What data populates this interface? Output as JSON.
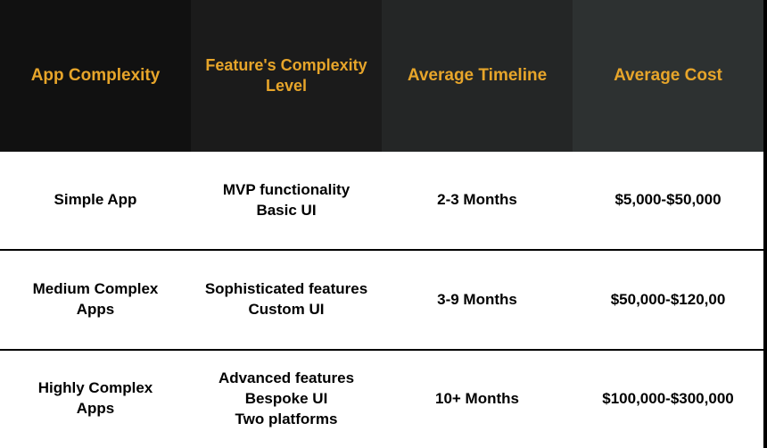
{
  "table": {
    "type": "table",
    "header_bg_colors": [
      "#111111",
      "#1b1b1b",
      "#242626",
      "#2d3131"
    ],
    "header_text_color": "#e7a52a",
    "header_fontsize": 19,
    "body_bg_color": "#ffffff",
    "body_text_color": "#000000",
    "body_fontsize": 17,
    "row_divider_color": "#000000",
    "columns": [
      {
        "key": "complexity",
        "label": "App Complexity"
      },
      {
        "key": "features",
        "label": "Feature's Complexity Level"
      },
      {
        "key": "timeline",
        "label": "Average Timeline"
      },
      {
        "key": "cost",
        "label": "Average Cost"
      }
    ],
    "rows": [
      {
        "complexity": "Simple App",
        "features": "MVP functionality\nBasic UI",
        "timeline": "2-3 Months",
        "cost": "$5,000-$50,000"
      },
      {
        "complexity": "Medium Complex\nApps",
        "features": "Sophisticated features\nCustom UI",
        "timeline": "3-9 Months",
        "cost": "$50,000-$120,00"
      },
      {
        "complexity": "Highly Complex\nApps",
        "features": "Advanced features\nBespoke UI\nTwo platforms",
        "timeline": "10+ Months",
        "cost": "$100,000-$300,000"
      }
    ]
  }
}
